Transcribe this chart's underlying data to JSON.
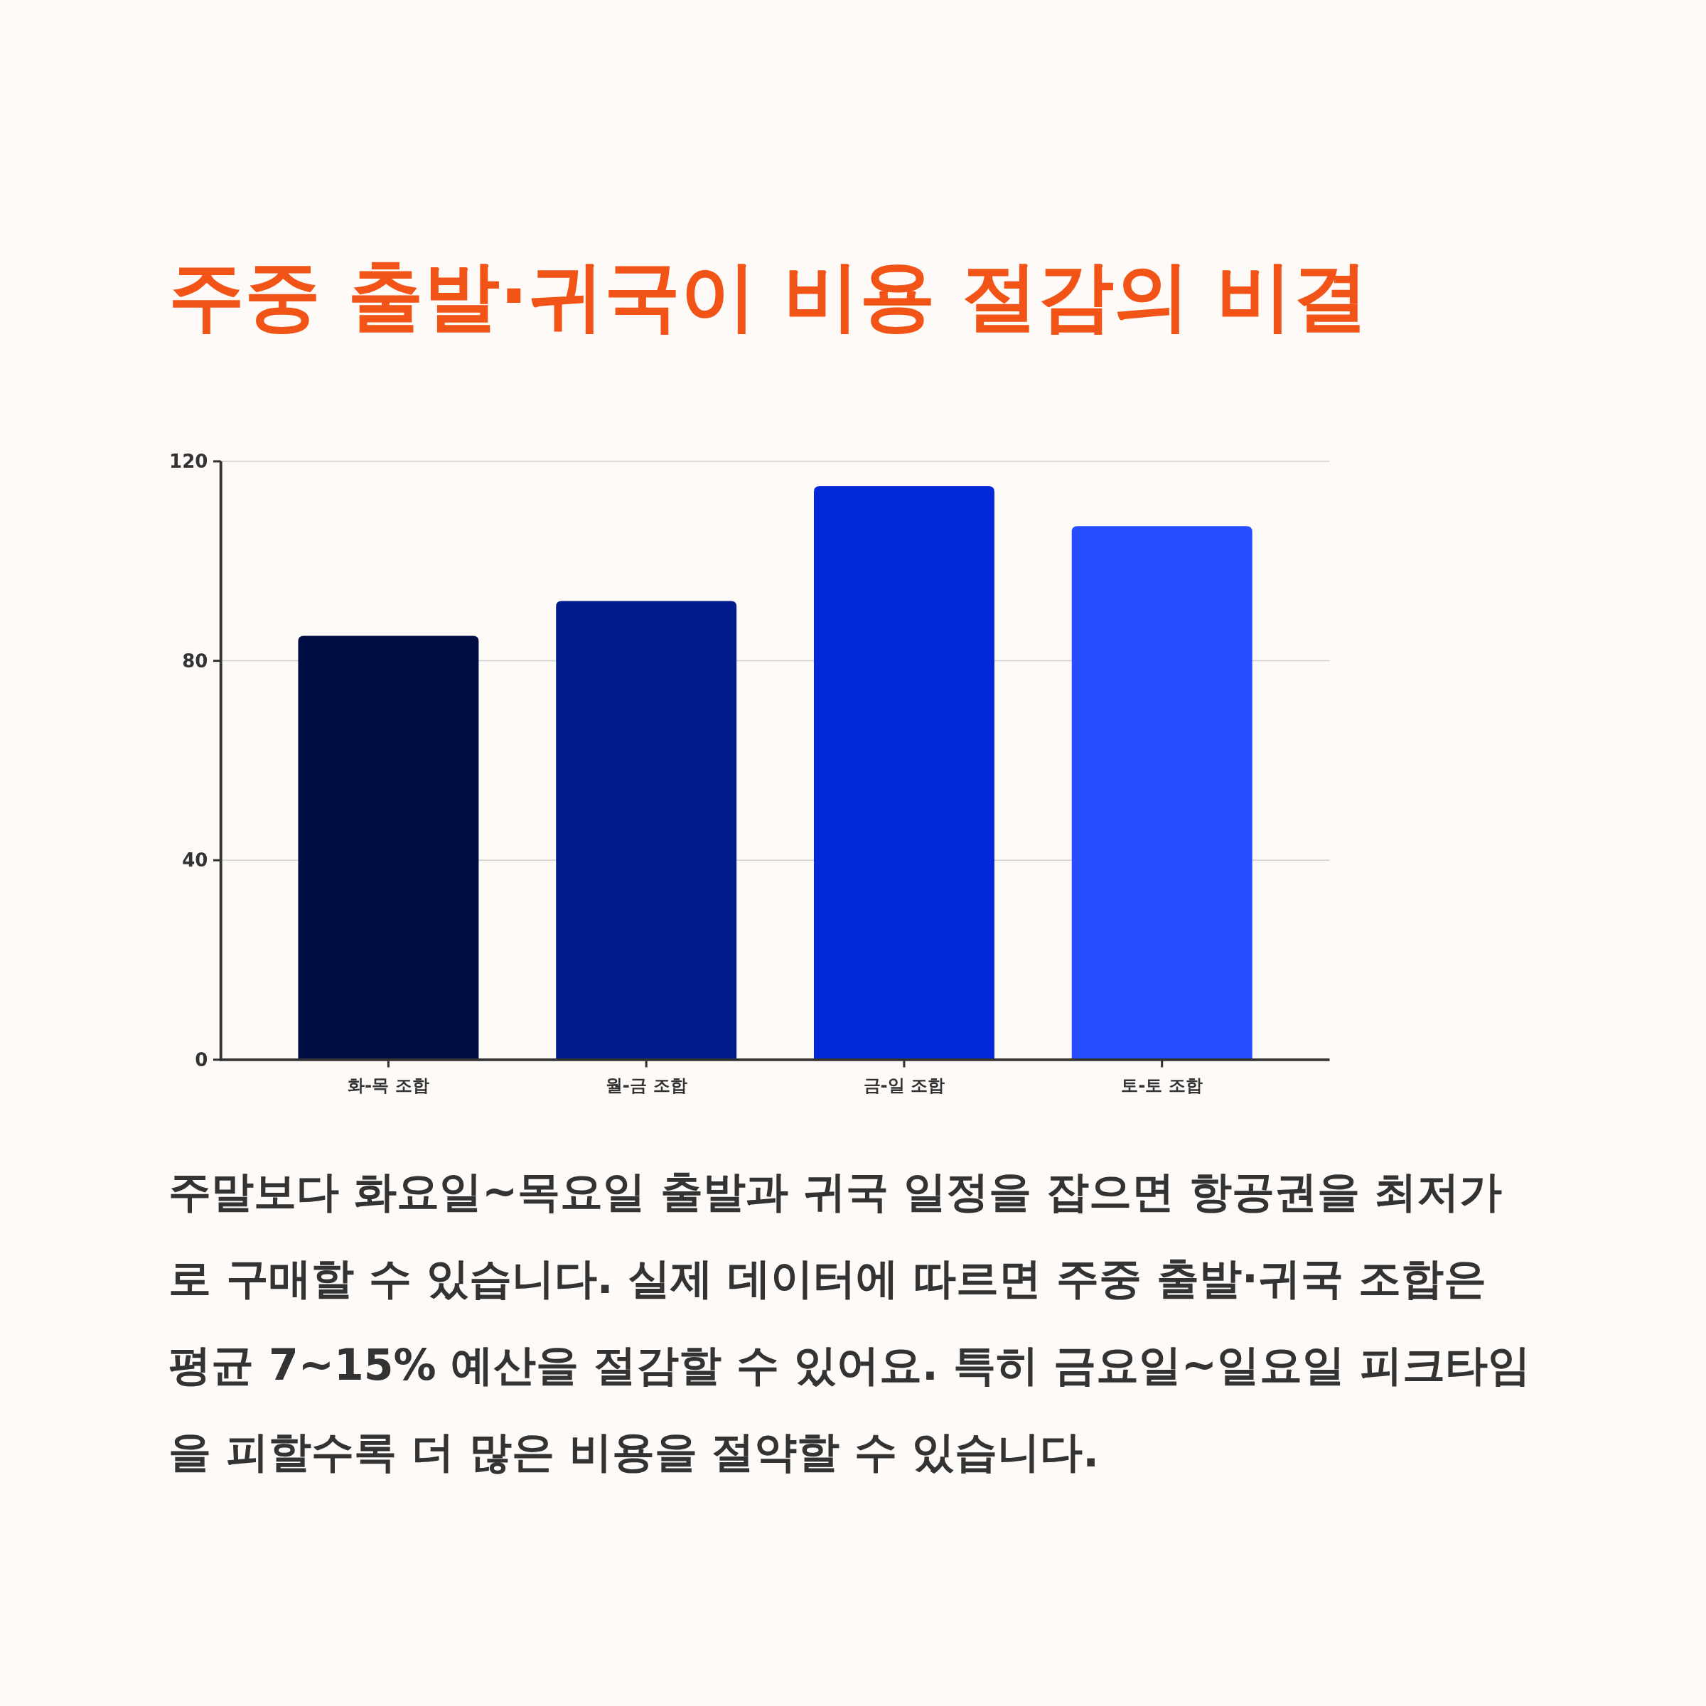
{
  "chart_data": {
    "type": "bar",
    "title": "주중 출발·귀국이 비용 절감의 비결",
    "categories": [
      "화-목 조합",
      "월-금 조합",
      "금-일 조합",
      "토-토 조합"
    ],
    "values": [
      85,
      92,
      115,
      107
    ],
    "colors": [
      "#000e45",
      "#001c8c",
      "#0328d8",
      "#264dff"
    ],
    "ylim": [
      0,
      120
    ],
    "yticks": [
      0,
      40,
      80,
      120
    ],
    "grid": "y",
    "annotations": [
      "주말보다 화요일~목요일 출발과 귀국 일정을 잡으면 항공권을 최저가로 구매할 수 있습니다. 실제 데이터에 따르면 주중 출발·귀국 조합은 평균 7~15% 예산을 절감할 수 있어요. 특히 금요일~일요일 피크타임을 피할수록 더 많은 비용을 절약할 수 있습니다."
    ]
  }
}
